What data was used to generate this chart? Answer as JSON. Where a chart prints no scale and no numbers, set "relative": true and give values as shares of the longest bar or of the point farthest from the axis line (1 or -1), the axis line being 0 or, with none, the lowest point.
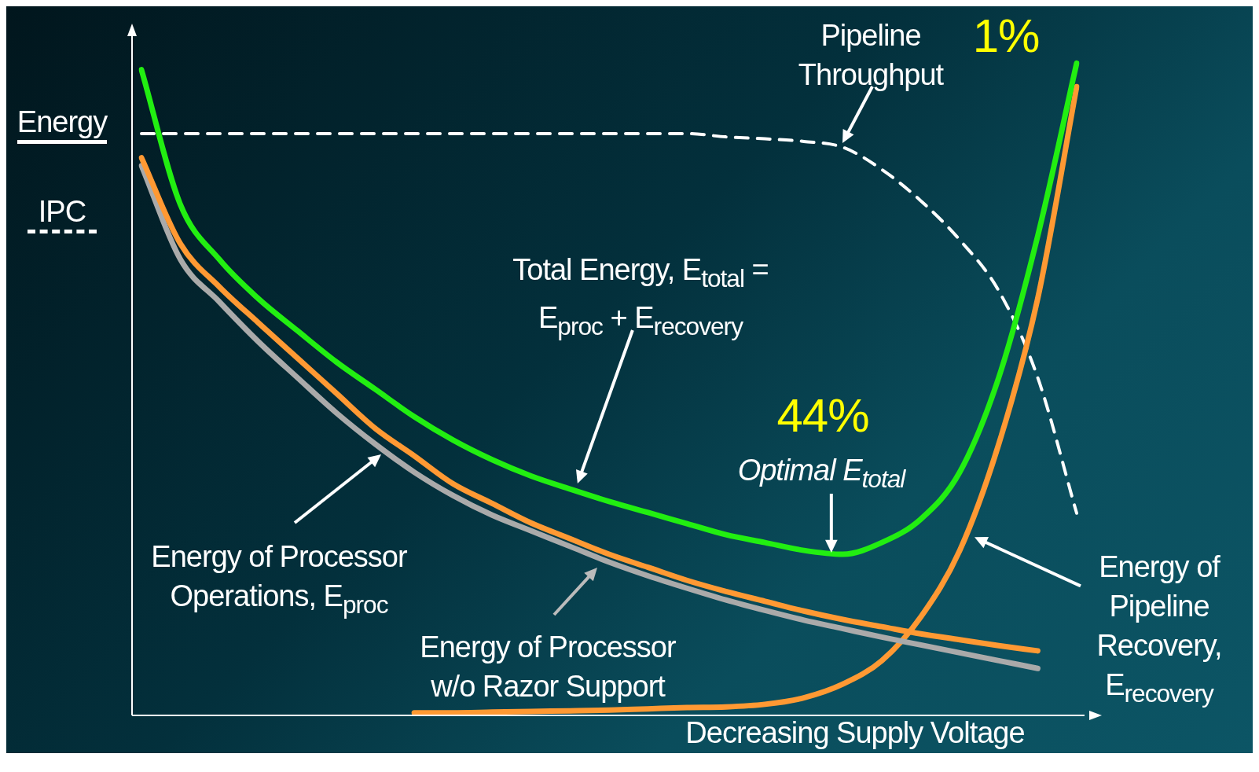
{
  "chart_data": {
    "type": "line",
    "relative": true,
    "legend": false,
    "marker": "none",
    "categories": [
      null,
      null,
      null,
      null,
      null,
      null,
      null,
      null,
      null,
      null,
      null,
      null,
      null,
      null,
      null,
      null,
      null,
      null,
      null,
      null,
      null,
      null,
      null,
      null,
      null
    ],
    "series": [
      {
        "color": "#22ee11",
        "line_style": "solid",
        "values": [
          0.99,
          0.783,
          0.699,
          0.639,
          0.59,
          0.542,
          0.5,
          0.458,
          0.422,
          0.392,
          0.367,
          0.347,
          0.328,
          0.311,
          0.294,
          0.277,
          0.265,
          0.253,
          0.247,
          0.265,
          0.301,
          0.373,
          0.518,
          0.735,
          1.0
        ]
      },
      {
        "color": "#ff9933",
        "line_style": "solid",
        "values": [
          0.855,
          0.723,
          0.657,
          0.602,
          0.548,
          0.494,
          0.44,
          0.398,
          0.355,
          0.325,
          0.295,
          0.271,
          0.247,
          0.227,
          0.207,
          0.19,
          0.175,
          0.16,
          0.147,
          0.136,
          0.125,
          0.116,
          0.107,
          0.099,
          null
        ]
      },
      {
        "color": "#aaaaaa",
        "line_style": "solid",
        "values": [
          0.843,
          0.699,
          0.634,
          0.573,
          0.518,
          0.464,
          0.416,
          0.373,
          0.337,
          0.307,
          0.283,
          0.259,
          0.235,
          0.214,
          0.195,
          0.177,
          0.161,
          0.146,
          0.133,
          0.12,
          0.108,
          0.096,
          0.084,
          0.072,
          null
        ]
      },
      {
        "color": "#ff9933",
        "line_style": "solid",
        "values": [
          null,
          null,
          null,
          null,
          null,
          null,
          null,
          0.004,
          0.004,
          0.005,
          0.006,
          0.007,
          0.008,
          0.01,
          0.012,
          0.013,
          0.017,
          0.027,
          0.048,
          0.084,
          0.151,
          0.253,
          0.416,
          0.639,
          0.964
        ]
      },
      {
        "color": "#ffffff",
        "line_style": "dashed",
        "values": [
          0.892,
          0.892,
          0.892,
          0.892,
          0.892,
          0.892,
          0.892,
          0.892,
          0.892,
          0.892,
          0.892,
          0.892,
          0.892,
          0.892,
          0.892,
          0.887,
          0.884,
          0.88,
          0.871,
          0.837,
          0.789,
          0.729,
          0.651,
          0.518,
          0.31
        ]
      }
    ],
    "ylabel": "Energy",
    "y2label": "IPC",
    "xlabel": "Decreasing Supply Voltage",
    "annotations": [
      "1%",
      "44%",
      "Optimal E$_{total}$",
      "Energy of Processor Operations, E$_{proc}$",
      "Energy of Processor w/o Razor Support",
      "Energy of Pipeline Recovery, E$_{recovery}$",
      "Total Energy, E$_{total}$ = E$_{proc}$ + E$_{recovery}$",
      "Pipeline Throughput"
    ]
  }
}
